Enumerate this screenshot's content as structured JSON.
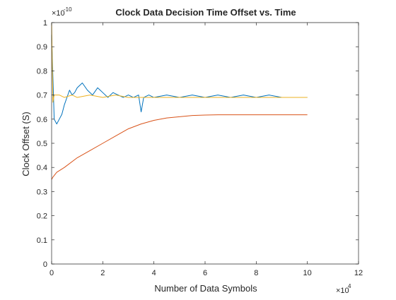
{
  "chart_data": {
    "type": "line",
    "title": "Clock Data Decision Time Offset vs. Time",
    "xlabel": "Number of Data Symbols",
    "ylabel": "Clock Offset (S)",
    "x_multiplier": "×10",
    "x_multiplier_exp": "4",
    "y_multiplier": "×10",
    "y_multiplier_exp": "-10",
    "xlim": [
      0,
      12
    ],
    "ylim": [
      0,
      1
    ],
    "x_ticks": [
      0,
      2,
      4,
      6,
      8,
      10,
      12
    ],
    "y_ticks": [
      0,
      0.1,
      0.2,
      0.3,
      0.4,
      0.5,
      0.6,
      0.7,
      0.8,
      0.9,
      1
    ],
    "grid": false,
    "legend": "none",
    "series": [
      {
        "color": "#0072BD",
        "x": [
          0,
          0.1,
          0.2,
          0.3,
          0.4,
          0.5,
          0.6,
          0.7,
          0.8,
          0.9,
          1.0,
          1.2,
          1.4,
          1.6,
          1.8,
          2.0,
          2.2,
          2.4,
          2.6,
          2.8,
          3.0,
          3.2,
          3.4,
          3.5,
          3.6,
          3.8,
          4.0,
          4.5,
          5.0,
          5.5,
          6.0,
          6.5,
          7.0,
          7.5,
          8.0,
          8.5,
          9.0,
          9.5,
          10.0
        ],
        "y": [
          0.95,
          0.6,
          0.58,
          0.6,
          0.62,
          0.66,
          0.69,
          0.72,
          0.7,
          0.71,
          0.73,
          0.75,
          0.72,
          0.7,
          0.73,
          0.71,
          0.69,
          0.71,
          0.7,
          0.69,
          0.7,
          0.69,
          0.7,
          0.63,
          0.69,
          0.7,
          0.69,
          0.7,
          0.69,
          0.7,
          0.69,
          0.7,
          0.69,
          0.7,
          0.69,
          0.7,
          0.69,
          0.69,
          0.69
        ]
      },
      {
        "color": "#D95319",
        "x": [
          0,
          0.05,
          0.2,
          0.5,
          1.0,
          1.5,
          2.0,
          2.5,
          3.0,
          3.5,
          4.0,
          4.5,
          5.0,
          5.5,
          6.0,
          6.5,
          7.0,
          8.0,
          9.0,
          10.0
        ],
        "y": [
          0.35,
          0.36,
          0.38,
          0.4,
          0.44,
          0.47,
          0.5,
          0.53,
          0.56,
          0.58,
          0.595,
          0.605,
          0.61,
          0.615,
          0.617,
          0.618,
          0.618,
          0.618,
          0.618,
          0.618
        ]
      },
      {
        "color": "#EDB120",
        "x": [
          0,
          0.05,
          0.1,
          0.3,
          0.5,
          0.8,
          1.0,
          1.5,
          2.0,
          2.5,
          3.0,
          3.5,
          4.0,
          5.0,
          6.0,
          7.0,
          8.0,
          9.0,
          10.0
        ],
        "y": [
          1.0,
          0.67,
          0.7,
          0.7,
          0.69,
          0.7,
          0.69,
          0.7,
          0.69,
          0.7,
          0.69,
          0.69,
          0.69,
          0.69,
          0.69,
          0.69,
          0.69,
          0.69,
          0.69
        ]
      }
    ]
  }
}
